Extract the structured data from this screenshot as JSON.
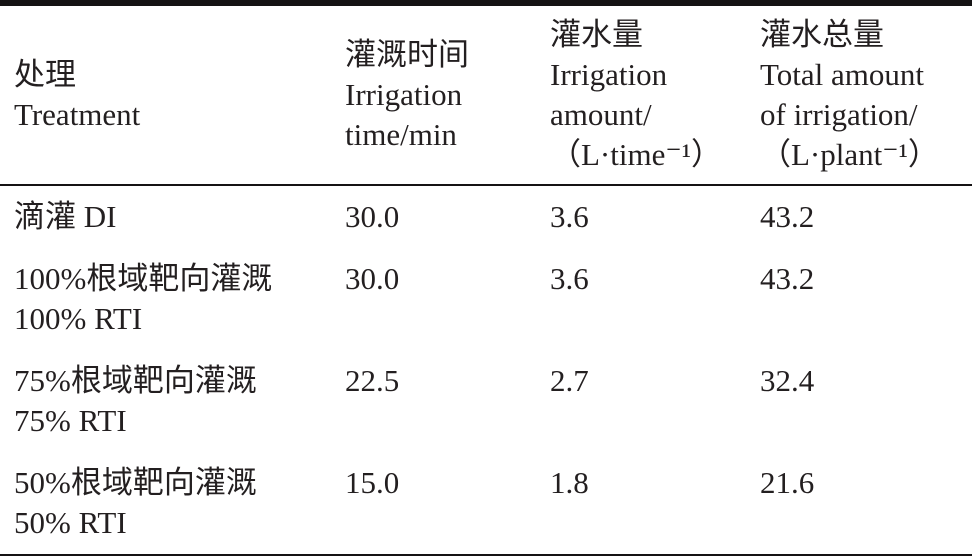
{
  "table": {
    "header": {
      "treatment": {
        "lines": [
          "处理",
          "Treatment"
        ]
      },
      "irrigation_time": {
        "lines": [
          "灌溉时间",
          "Irrigation",
          "time/min"
        ]
      },
      "irrigation_amount": {
        "lines": [
          "灌水量",
          "Irrigation",
          "amount/",
          "（L·time⁻¹）"
        ]
      },
      "total_irrigation": {
        "lines": [
          "灌水总量",
          "Total amount",
          "of irrigation/",
          "（L·plant⁻¹）"
        ]
      }
    },
    "rows": [
      {
        "treatment_lines": [
          "滴灌 DI"
        ],
        "irrigation_time": "30.0",
        "irrigation_amount": "3.6",
        "total_irrigation": "43.2"
      },
      {
        "treatment_lines": [
          "100%根域靶向灌溉",
          "100% RTI"
        ],
        "irrigation_time": "30.0",
        "irrigation_amount": "3.6",
        "total_irrigation": "43.2"
      },
      {
        "treatment_lines": [
          "75%根域靶向灌溉",
          "75% RTI"
        ],
        "irrigation_time": "22.5",
        "irrigation_amount": "2.7",
        "total_irrigation": "32.4"
      },
      {
        "treatment_lines": [
          "50%根域靶向灌溉",
          "50% RTI"
        ],
        "irrigation_time": "15.0",
        "irrigation_amount": "1.8",
        "total_irrigation": "21.6"
      }
    ]
  }
}
